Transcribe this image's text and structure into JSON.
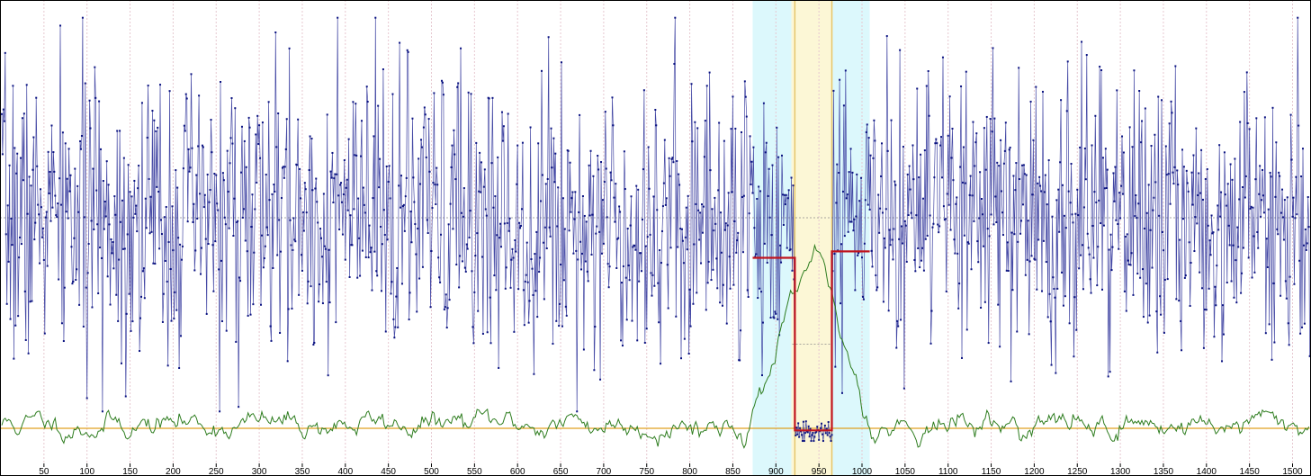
{
  "chart_data": {
    "type": "line",
    "title": "",
    "xlabel": "",
    "ylabel": "",
    "xlim": [
      0,
      1520
    ],
    "ylim": [
      -1,
      1
    ],
    "grid": "vertical dashed at every 50",
    "x_ticks": [
      50,
      100,
      150,
      200,
      250,
      300,
      350,
      400,
      450,
      500,
      550,
      600,
      650,
      700,
      750,
      800,
      850,
      900,
      950,
      1000,
      1050,
      1100,
      1150,
      1200,
      1250,
      1300,
      1350,
      1400,
      1450,
      1500
    ],
    "x_tick_labels": [
      "50",
      "100",
      "150",
      "200",
      "250",
      "300",
      "350",
      "400",
      "450",
      "500",
      "550",
      "600",
      "650",
      "700",
      "750",
      "800",
      "850",
      "900",
      "950",
      "1000",
      "1050",
      "1100",
      "1150",
      "1200",
      "1250",
      "1300",
      "1350",
      "1400",
      "1450",
      "1500"
    ],
    "regions": [
      {
        "kind": "outer-window",
        "x_start": 873,
        "x_end": 1009,
        "color": "#dcf8fc"
      },
      {
        "kind": "inner-window",
        "x_start": 918,
        "x_end": 966,
        "color": "#fcf7d6"
      }
    ],
    "markers": [
      {
        "kind": "vertical-line",
        "x": 922,
        "color": "#e5c56b"
      },
      {
        "kind": "vertical-line",
        "x": 965,
        "color": "#e5c56b"
      }
    ],
    "reference_lines": {
      "signal_mean": 0.0,
      "inner_dashed": {
        "x_start": 919,
        "x_end": 966,
        "y": -0.6
      },
      "baseline": -1.0
    },
    "series": [
      {
        "role": "signal",
        "color": "#3b3fa0",
        "marker_color": "#0a1280",
        "noise": {
          "mean": 0.0,
          "sd": 0.34,
          "peak_max": 0.95,
          "peak_min": -0.92,
          "count": 1520,
          "seed": 7
        },
        "dip": {
          "x_start": 922,
          "x_end": 965,
          "mean": -1.02,
          "sd": 0.03
        }
      },
      {
        "role": "smoothed",
        "color": "#2e7d1f",
        "baseline": -0.98,
        "variation": 0.05,
        "peak": {
          "x": 945,
          "y": -0.17,
          "x_start": 868,
          "x_end": 1010
        },
        "seed": 11
      },
      {
        "role": "fit",
        "color": "#c0141e",
        "points": [
          [
            873,
            -0.19
          ],
          [
            922,
            -0.19
          ],
          [
            922,
            -1.01
          ],
          [
            965,
            -1.01
          ],
          [
            965,
            -0.16
          ],
          [
            1009,
            -0.16
          ]
        ]
      },
      {
        "role": "threshold",
        "color": "#e0a020",
        "points": [
          [
            0,
            -1.0
          ],
          [
            1520,
            -1.0
          ]
        ]
      }
    ]
  }
}
